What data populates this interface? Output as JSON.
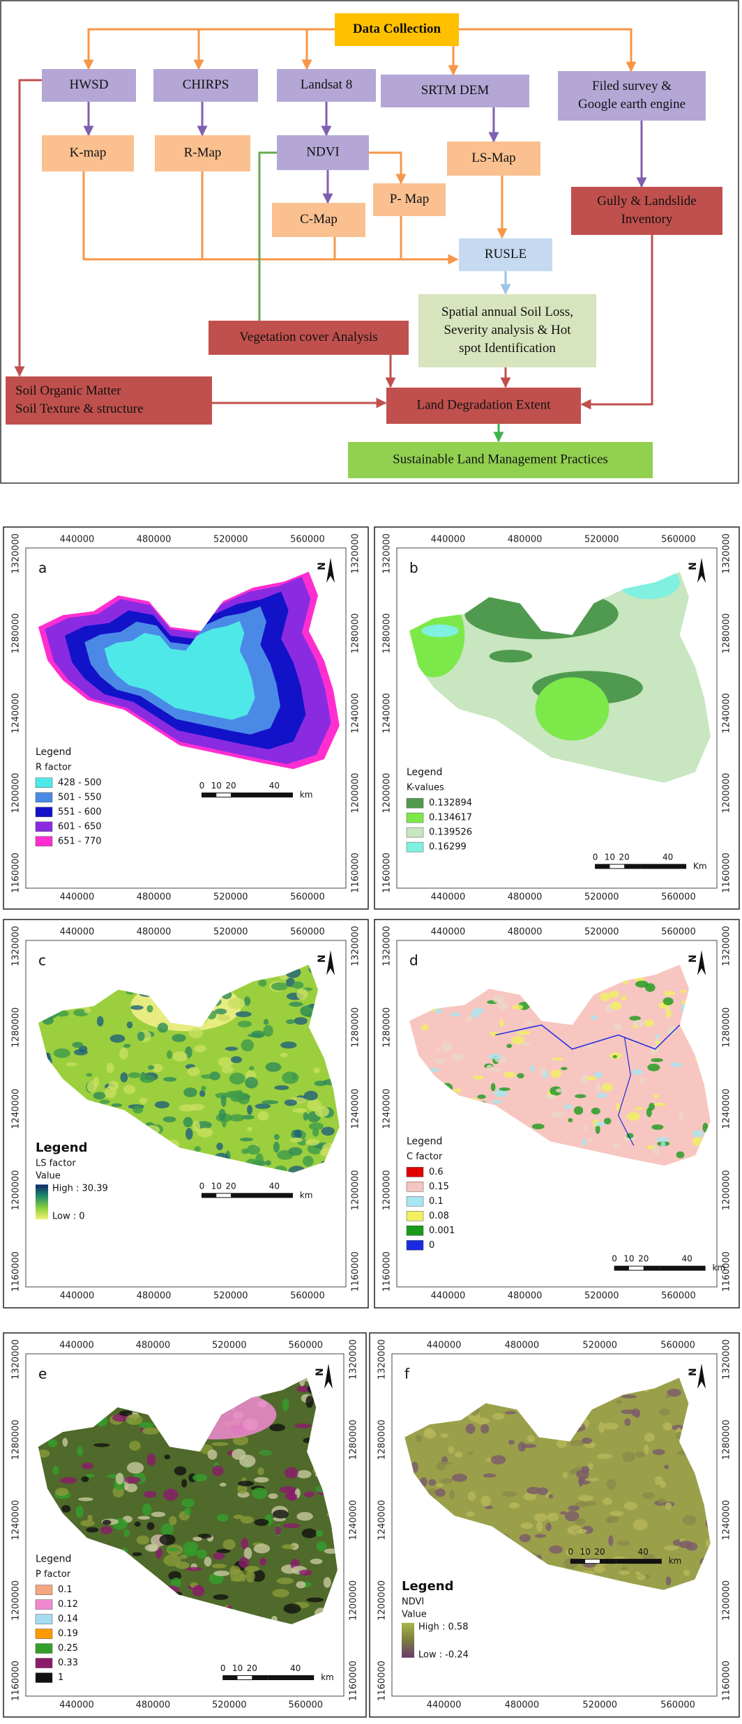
{
  "flowchart": {
    "nodes": [
      {
        "lines": [
          "Data Collection"
        ]
      },
      {
        "lines": [
          "HWSD"
        ]
      },
      {
        "lines": [
          "CHIRPS"
        ]
      },
      {
        "lines": [
          "Landsat 8"
        ]
      },
      {
        "lines": [
          "SRTM DEM"
        ]
      },
      {
        "lines": [
          "Filed survey &",
          "Google earth engine"
        ]
      },
      {
        "lines": [
          "K-map"
        ]
      },
      {
        "lines": [
          "R-Map"
        ]
      },
      {
        "lines": [
          "NDVI"
        ]
      },
      {
        "lines": [
          "LS-Map"
        ]
      },
      {
        "lines": [
          "P- Map"
        ]
      },
      {
        "lines": [
          "C-Map"
        ]
      },
      {
        "lines": [
          "Gully & Landslide",
          "Inventory"
        ]
      },
      {
        "lines": [
          "RUSLE"
        ]
      },
      {
        "lines": [
          "Spatial annual Soil Loss,",
          "Severity analysis & Hot",
          "spot Identification"
        ]
      },
      {
        "lines": [
          "Vegetation cover Analysis"
        ]
      },
      {
        "lines": [
          "Soil Organic Matter",
          "Soil Texture & structure"
        ]
      },
      {
        "lines": [
          "Land Degradation Extent"
        ]
      },
      {
        "lines": [
          "Sustainable Land Management Practices"
        ]
      }
    ]
  },
  "maps": {
    "xticks": [
      440000,
      480000,
      520000,
      560000
    ],
    "yticks": [
      1160000,
      1200000,
      1240000,
      1280000,
      1320000
    ],
    "north": "N",
    "panels": [
      {
        "letter": "a",
        "legend_title": "Legend",
        "legend_subtitle": "R factor",
        "items": [
          {
            "label": "428 - 500",
            "color": "#4fe8e8"
          },
          {
            "label": "501 - 550",
            "color": "#4a8ae6"
          },
          {
            "label": "551 - 600",
            "color": "#1212c8"
          },
          {
            "label": "601 - 650",
            "color": "#8a2be2"
          },
          {
            "label": "651 - 770",
            "color": "#ff2ed0"
          }
        ],
        "scale": [
          "0",
          "10",
          "20",
          "40",
          "km"
        ]
      },
      {
        "letter": "b",
        "legend_title": "Legend",
        "legend_subtitle": "K-values",
        "items": [
          {
            "label": "0.132894",
            "color": "#4f9a4f"
          },
          {
            "label": "0.134617",
            "color": "#7de84a"
          },
          {
            "label": "0.139526",
            "color": "#c8e6c0"
          },
          {
            "label": "0.16299",
            "color": "#80f0e0"
          }
        ],
        "scale": [
          "0",
          "10",
          "20",
          "40",
          "Km"
        ]
      },
      {
        "letter": "c",
        "legend_title": "Legend",
        "legend_subtitle": "LS factor",
        "value_title": "Value",
        "high": "High : 30.39",
        "low": "Low : 0",
        "gradient": [
          "#0d2a6b",
          "#1f8a6a",
          "#8ccf3a",
          "#f4f27a"
        ],
        "scale": [
          "0",
          "10",
          "20",
          "40",
          "km"
        ]
      },
      {
        "letter": "d",
        "legend_title": "Legend",
        "legend_subtitle": "C factor",
        "items": [
          {
            "label": "0.6",
            "color": "#e00000"
          },
          {
            "label": "0.15",
            "color": "#f7c6c0"
          },
          {
            "label": "0.1",
            "color": "#a8e6f0"
          },
          {
            "label": "0.08",
            "color": "#f0f060"
          },
          {
            "label": "0.001",
            "color": "#1a9a1a"
          },
          {
            "label": "0",
            "color": "#1a2ae0"
          }
        ],
        "scale": [
          "0",
          "10",
          "20",
          "40",
          "km"
        ]
      },
      {
        "letter": "e",
        "legend_title": "Legend",
        "legend_subtitle": "P factor",
        "items": [
          {
            "label": "0.1",
            "color": "#f4a582"
          },
          {
            "label": "0.12",
            "color": "#f08ad0"
          },
          {
            "label": "0.14",
            "color": "#a6dcf0"
          },
          {
            "label": "0.19",
            "color": "#ff9900"
          },
          {
            "label": "0.25",
            "color": "#33a02c"
          },
          {
            "label": "0.33",
            "color": "#8b1a6b"
          },
          {
            "label": "1",
            "color": "#111111"
          }
        ],
        "scale": [
          "0",
          "10",
          "20",
          "40",
          "km"
        ]
      },
      {
        "letter": "f",
        "legend_title": "Legend",
        "legend_subtitle": "NDVI",
        "value_title": "Value",
        "high": "High : 0.58",
        "low": "Low : -0.24",
        "gradient": [
          "#a8b84a",
          "#7a7a40",
          "#6a3a6a"
        ],
        "scale": [
          "0",
          "10",
          "20",
          "40",
          "km"
        ]
      }
    ]
  }
}
